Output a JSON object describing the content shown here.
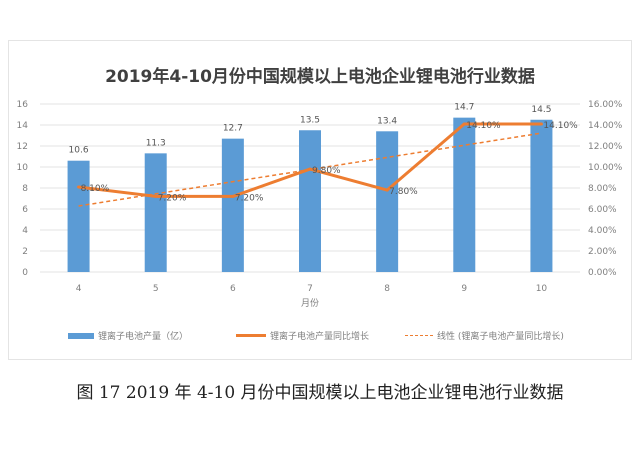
{
  "chart_data": {
    "type": "bar+line",
    "title": "2019年4-10月份中国规模以上电池企业锂电池行业数据",
    "xlabel": "月份",
    "categories": [
      "4",
      "5",
      "6",
      "7",
      "8",
      "9",
      "10"
    ],
    "series": [
      {
        "name": "锂离子电池产量（亿）",
        "type": "bar",
        "axis": "left",
        "values": [
          10.6,
          11.3,
          12.7,
          13.5,
          13.4,
          14.7,
          14.5
        ],
        "labels": [
          "10.6",
          "11.3",
          "12.7",
          "13.5",
          "13.4",
          "14.7",
          "14.5"
        ],
        "color": "#5b9bd5"
      },
      {
        "name": "锂离子电池产量同比增长",
        "type": "line",
        "axis": "right",
        "values": [
          8.1,
          7.2,
          7.2,
          9.8,
          7.8,
          14.1,
          14.1
        ],
        "labels": [
          "8.10%",
          "7.20%",
          "7.20%",
          "9.80%",
          "7.80%",
          "14.10%",
          "14.10%"
        ],
        "color": "#ed7d31"
      },
      {
        "name": "线性 (锂离子电池产量同比增长)",
        "type": "trendline-linear",
        "axis": "right",
        "color": "#ed7d31"
      }
    ],
    "ylim_left": [
      0,
      16
    ],
    "yticks_left": [
      "0",
      "2",
      "4",
      "6",
      "8",
      "10",
      "12",
      "14",
      "16"
    ],
    "ylim_right": [
      0,
      16
    ],
    "yticks_right": [
      "0.00%",
      "2.00%",
      "4.00%",
      "6.00%",
      "8.00%",
      "10.00%",
      "12.00%",
      "14.00%",
      "16.00%"
    ],
    "grid": true,
    "legend": "bottom"
  },
  "caption": "图 17 2019 年 4-10 月份中国规模以上电池企业锂电池行业数据"
}
